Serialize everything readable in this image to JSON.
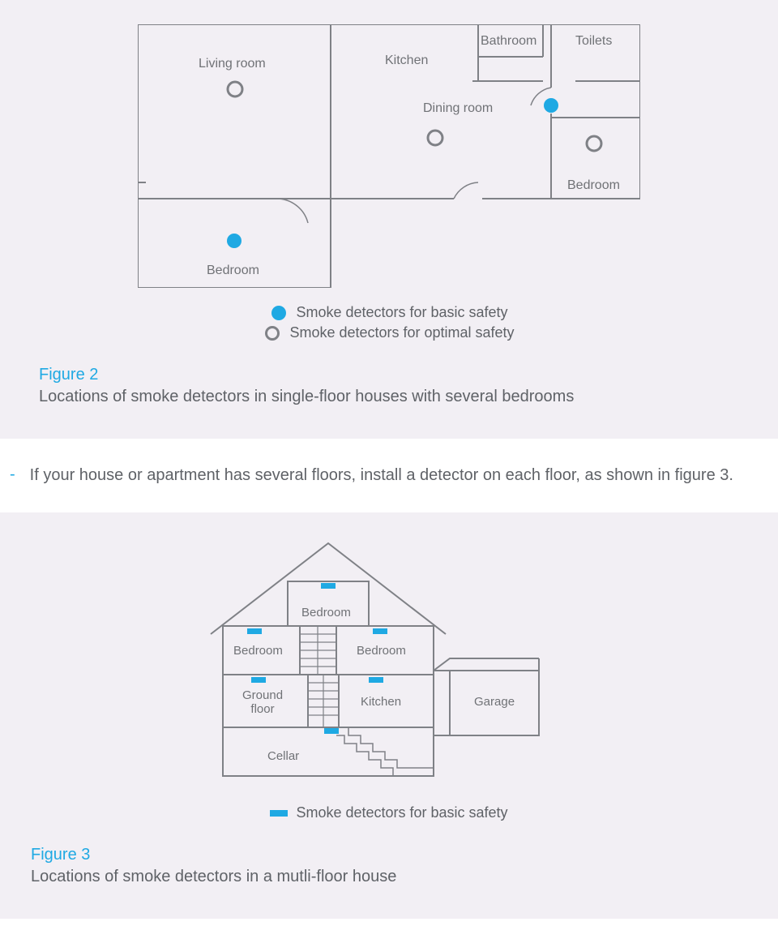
{
  "colors": {
    "panel_bg": "#f2eff4",
    "line": "#7f8186",
    "text": "#5f6267",
    "accent": "#1fa9e3"
  },
  "figure2": {
    "rooms": {
      "living_room": "Living room",
      "kitchen": "Kitchen",
      "bathroom": "Bathroom",
      "toilets": "Toilets",
      "dining_room": "Dining room",
      "bedroom_right": "Bedroom",
      "bedroom_left": "Bedroom"
    },
    "legend": {
      "basic": "Smoke detectors for basic safety",
      "optimal": "Smoke detectors for optimal safety"
    },
    "caption_num": "Figure 2",
    "caption_text": "Locations of smoke detectors in single-floor houses with several bedrooms",
    "markers": {
      "basic_color": "#1fa9e3",
      "optimal_stroke": "#7f8186",
      "radius": 9,
      "optimal_stroke_width": 3
    }
  },
  "body_paragraph": "If your house or apartment has several floors, install a detector on each floor, as shown in figure 3.",
  "figure3": {
    "rooms": {
      "bedroom_top": "Bedroom",
      "bedroom_left": "Bedroom",
      "bedroom_right": "Bedroom",
      "ground_floor": "Ground floor",
      "kitchen": "Kitchen",
      "garage": "Garage",
      "cellar": "Cellar"
    },
    "legend": {
      "basic": "Smoke detectors for basic safety"
    },
    "caption_num": "Figure 3",
    "caption_text": "Locations of smoke detectors in a mutli-floor house",
    "detector_color": "#1fa9e3",
    "detector_w": 18,
    "detector_h": 7
  }
}
